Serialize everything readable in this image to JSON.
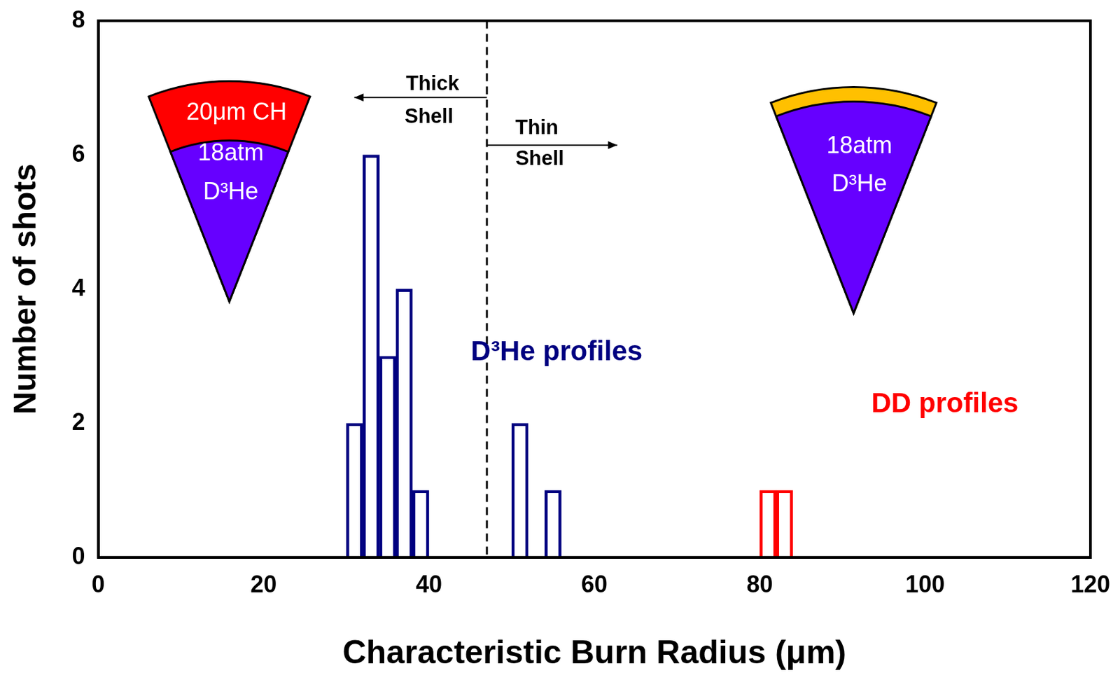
{
  "chart_data": {
    "type": "histogram",
    "x_label": "Characteristic Burn Radius (μm)",
    "y_label": "Number of shots",
    "bins": [
      30,
      32,
      34,
      36,
      38,
      40,
      42,
      44,
      46,
      48,
      50,
      52,
      54,
      56,
      58,
      60,
      62,
      64,
      66,
      68,
      70,
      72,
      74,
      76,
      78,
      80,
      82,
      84
    ],
    "series": [
      {
        "name": "D³He profiles",
        "color": "#000080",
        "values": [
          2,
          6,
          3,
          4,
          1,
          0,
          0,
          0,
          0,
          0,
          2,
          0,
          1,
          0,
          0,
          0,
          0,
          0,
          0,
          0,
          0,
          0,
          0,
          0,
          0,
          0,
          0
        ]
      },
      {
        "name": "DD profiles",
        "color": "#ff0000",
        "values": [
          0,
          0,
          0,
          0,
          0,
          0,
          0,
          0,
          0,
          0,
          0,
          0,
          0,
          0,
          0,
          0,
          0,
          0,
          0,
          0,
          0,
          0,
          0,
          0,
          0,
          1,
          1
        ]
      }
    ],
    "xlim": [
      0,
      120
    ],
    "xticks": [
      0,
      20,
      40,
      60,
      80,
      100,
      120
    ],
    "ylim": [
      0,
      8
    ],
    "yticks": [
      0,
      2,
      4,
      6,
      8
    ],
    "grid": false,
    "divider": {
      "x": 47,
      "line_style": "dashed",
      "left_label": "Thick Shell",
      "right_label": "Thin Shell"
    },
    "diagrams": [
      {
        "shell": "20μm CH",
        "gas": "18atm D³He"
      },
      {
        "gas": "18atm D³He"
      }
    ]
  }
}
